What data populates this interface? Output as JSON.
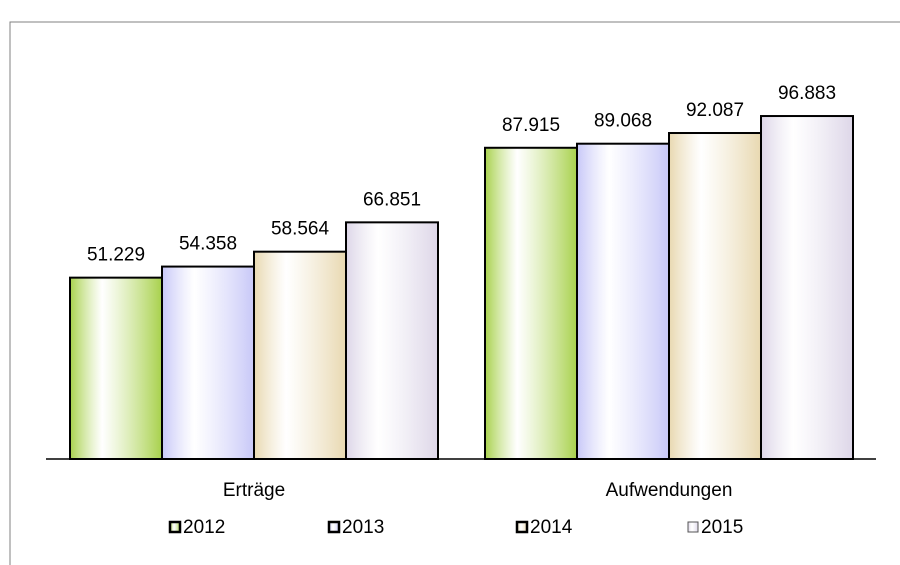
{
  "chart_data": {
    "type": "bar",
    "categories": [
      "Erträge",
      "Aufwendungen"
    ],
    "series": [
      {
        "name": "2012",
        "color": "#a8d14c",
        "values": [
          51.229,
          87.915
        ]
      },
      {
        "name": "2013",
        "color": "#c8c8f8",
        "values": [
          54.358,
          89.068
        ]
      },
      {
        "name": "2014",
        "color": "#e8d8b0",
        "values": [
          58.564,
          92.087
        ]
      },
      {
        "name": "2015",
        "color": "#ddd6e8",
        "values": [
          66.851,
          96.883
        ]
      }
    ],
    "legend": "bottom"
  }
}
